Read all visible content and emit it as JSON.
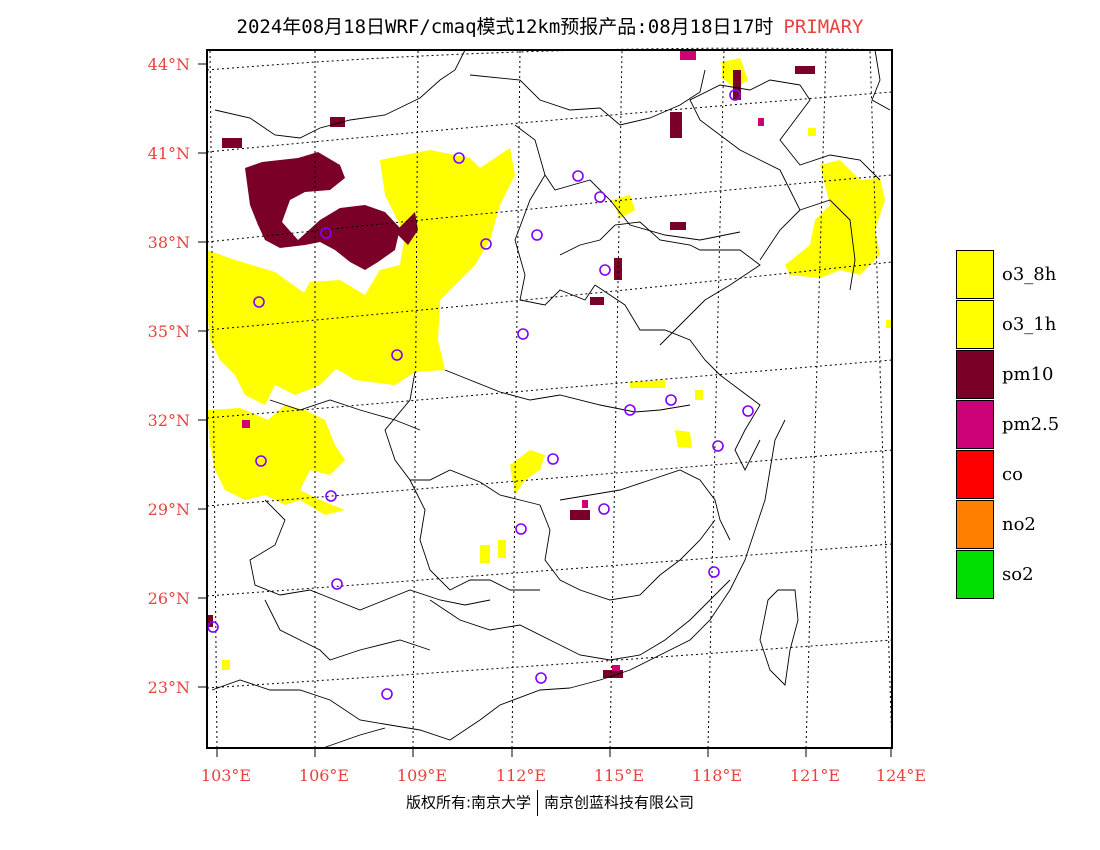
{
  "title": {
    "text": "2024年08月18日WRF/cmaq模式12km预报产品:08月18日17时",
    "tag": "PRIMARY"
  },
  "axes": {
    "lat_labels": [
      "44°N",
      "41°N",
      "38°N",
      "35°N",
      "32°N",
      "29°N",
      "26°N",
      "23°N"
    ],
    "lon_labels": [
      "103°E",
      "106°E",
      "109°E",
      "112°E",
      "115°E",
      "118°E",
      "121°E",
      "124°E"
    ],
    "label_color": "#e8413e"
  },
  "legend": {
    "items": [
      {
        "label": "o3_8h",
        "color": "#ffff00"
      },
      {
        "label": "o3_1h",
        "color": "#ffff00"
      },
      {
        "label": "pm10",
        "color": "#7a0028"
      },
      {
        "label": "pm2.5",
        "color": "#cc0077"
      },
      {
        "label": "co",
        "color": "#ff0000"
      },
      {
        "label": "no2",
        "color": "#ff8000"
      },
      {
        "label": "so2",
        "color": "#00dd00"
      }
    ]
  },
  "footer": {
    "left": "版权所有:南京大学",
    "right": "南京创蓝科技有限公司"
  },
  "map": {
    "pollutant_colors": {
      "o3": "#ffff00",
      "pm10": "#7a0028",
      "pm25": "#cc0077"
    },
    "station_marker_color": "#8000ff"
  }
}
